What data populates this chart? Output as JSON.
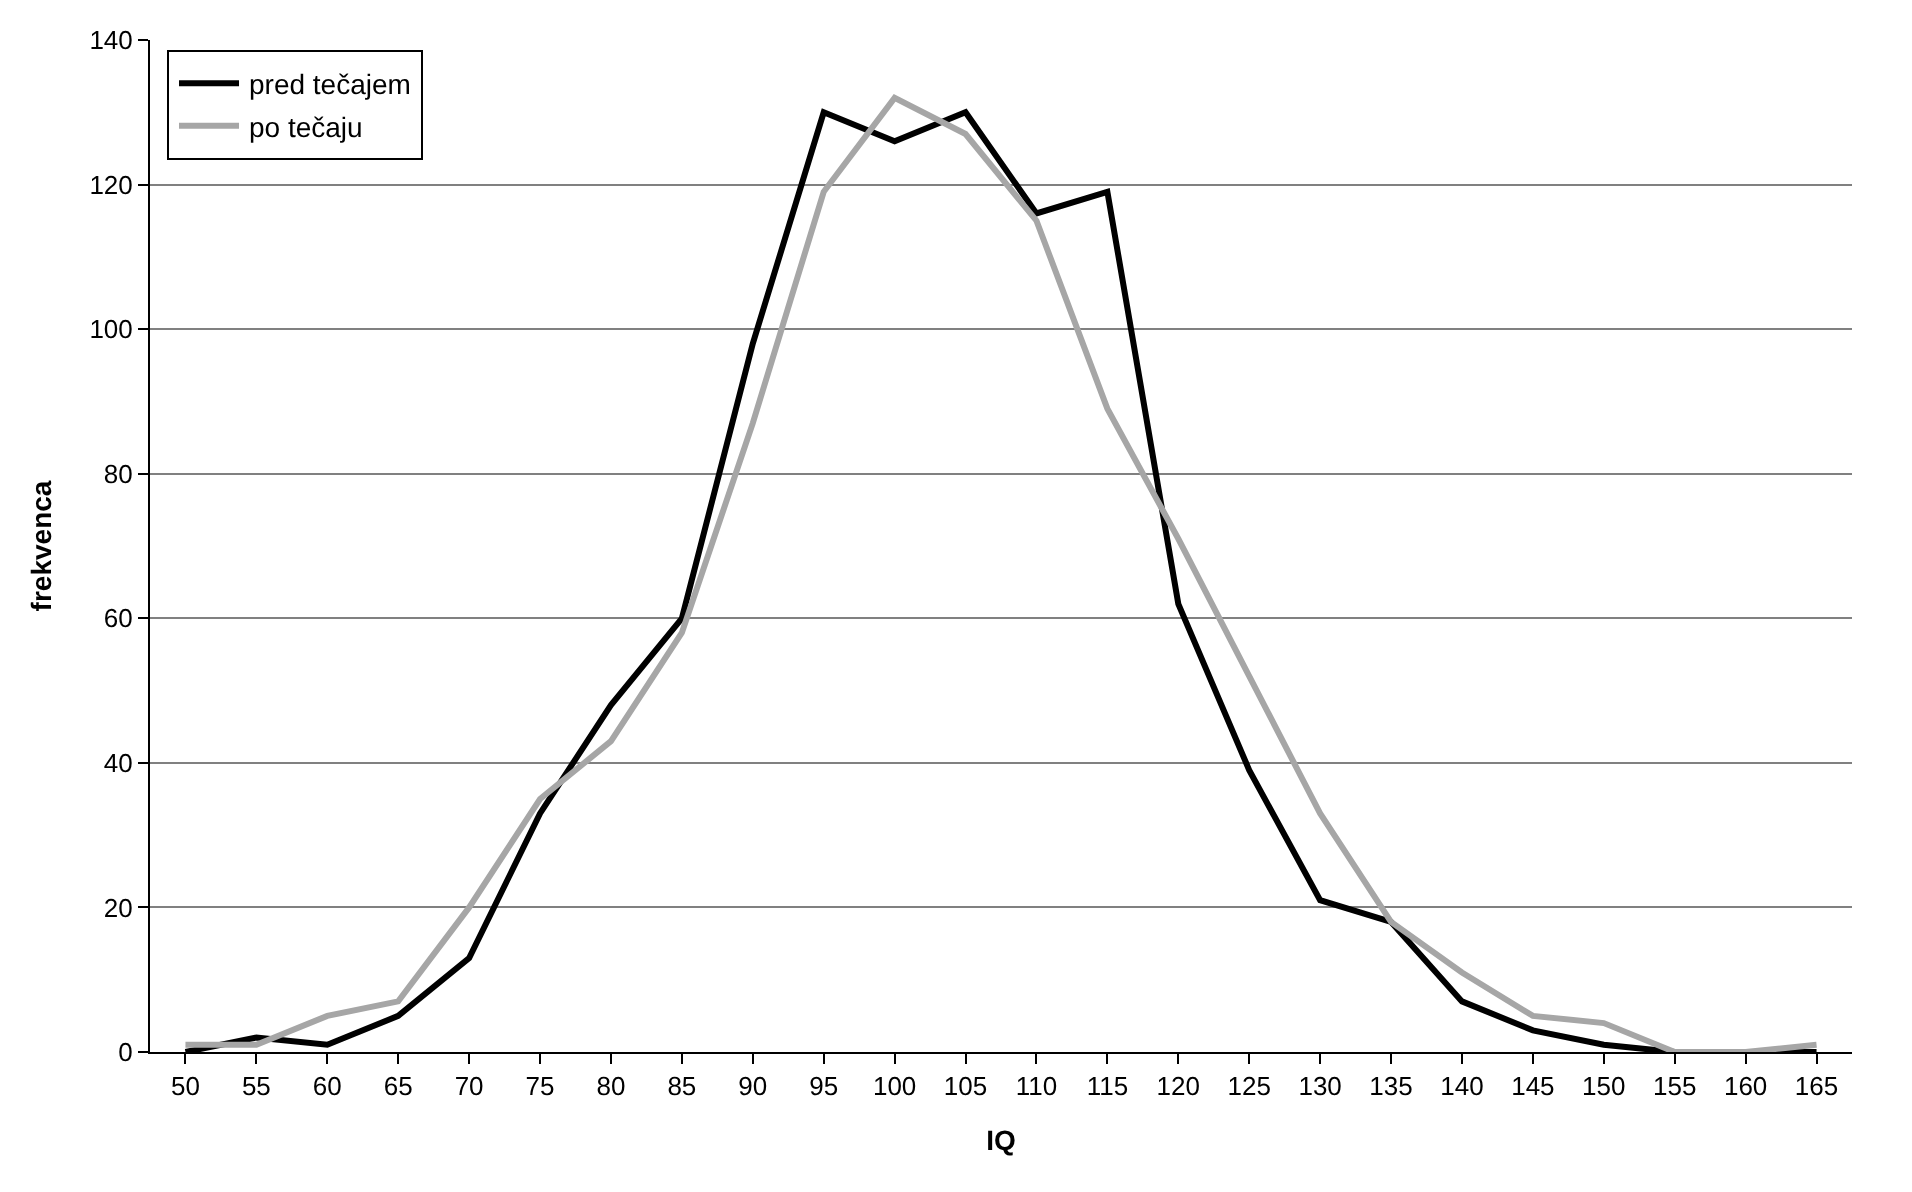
{
  "chart_data": {
    "type": "line",
    "xlabel": "IQ",
    "ylabel": "frekvenca",
    "categories": [
      "50",
      "55",
      "60",
      "65",
      "70",
      "75",
      "80",
      "85",
      "90",
      "95",
      "100",
      "105",
      "110",
      "115",
      "120",
      "125",
      "130",
      "135",
      "140",
      "145",
      "150",
      "155",
      "160",
      "165"
    ],
    "series": [
      {
        "name": "pred tečajem",
        "color": "#000000",
        "values": [
          0,
          2,
          1,
          5,
          13,
          33,
          48,
          60,
          98,
          130,
          126,
          130,
          116,
          119,
          62,
          39,
          21,
          18,
          7,
          3,
          1,
          0,
          0,
          0
        ]
      },
      {
        "name": "po tečaju",
        "color": "#a6a6a6",
        "values": [
          1,
          1,
          5,
          7,
          20,
          35,
          43,
          58,
          87,
          119,
          132,
          127,
          115,
          89,
          71,
          52,
          33,
          18,
          11,
          5,
          4,
          0,
          0,
          1
        ]
      }
    ],
    "ylim": [
      0,
      140
    ],
    "yticks": [
      0,
      20,
      40,
      60,
      80,
      100,
      120,
      140
    ],
    "grid": "y",
    "legend": "top left",
    "marker": "none",
    "line_style": "solid"
  }
}
